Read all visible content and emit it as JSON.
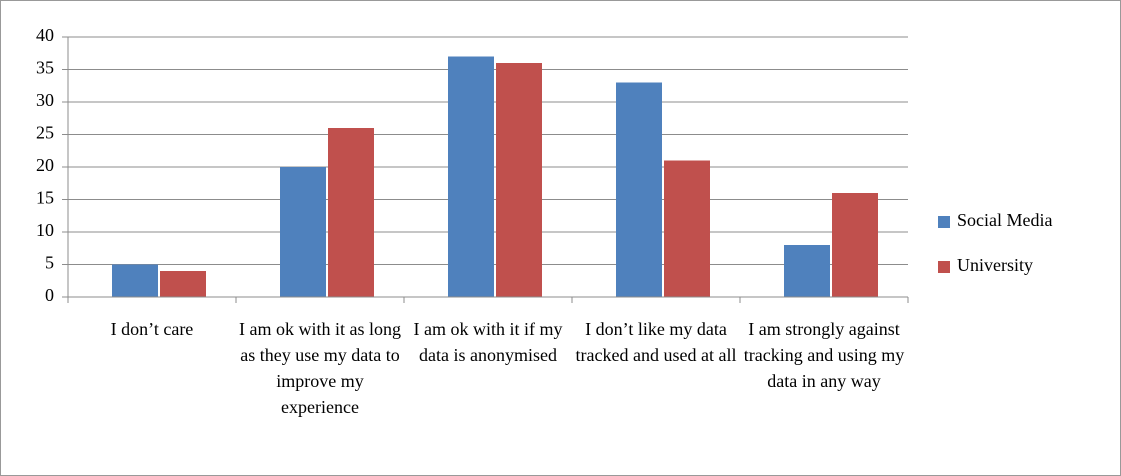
{
  "chart_data": {
    "type": "bar",
    "categories": [
      "I don’t care",
      "I am ok with it as long as they use my data to improve my experience",
      "I am ok with it if my data is anonymised",
      "I don’t like my data tracked and used at all",
      "I am strongly against tracking and using my data in any way"
    ],
    "series": [
      {
        "name": "Social Media",
        "color": "#4f81bd",
        "values": [
          5,
          20,
          37,
          33,
          8
        ]
      },
      {
        "name": "University",
        "color": "#c0504d",
        "values": [
          4,
          26,
          36,
          21,
          16
        ]
      }
    ],
    "ylim": [
      0,
      40
    ],
    "yticks": [
      0,
      5,
      10,
      15,
      20,
      25,
      30,
      35,
      40
    ],
    "grid": true,
    "legend": "right"
  }
}
